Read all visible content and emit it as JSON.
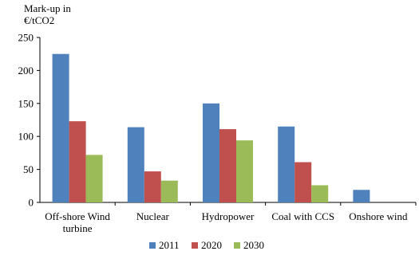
{
  "chart_data": {
    "type": "bar",
    "ylabel_lines": [
      "Mark-up in",
      "€/tCO2"
    ],
    "ylim": [
      0,
      250
    ],
    "yticks": [
      "0",
      "50",
      "100",
      "150",
      "200",
      "250"
    ],
    "grid": false,
    "legend_position": "bottom",
    "categories": [
      [
        "Off-shore Wind",
        "turbine"
      ],
      [
        "Nuclear"
      ],
      [
        "Hydropower"
      ],
      [
        "Coal with CCS"
      ],
      [
        "Onshore wind"
      ]
    ],
    "series": [
      {
        "name": "2011",
        "color": "#4F81BD",
        "values": [
          225,
          114,
          150,
          115,
          19
        ]
      },
      {
        "name": "2020",
        "color": "#C0504D",
        "values": [
          123,
          47,
          111,
          61,
          null
        ]
      },
      {
        "name": "2030",
        "color": "#9BBB59",
        "values": [
          72,
          33,
          94,
          26,
          null
        ]
      }
    ]
  }
}
